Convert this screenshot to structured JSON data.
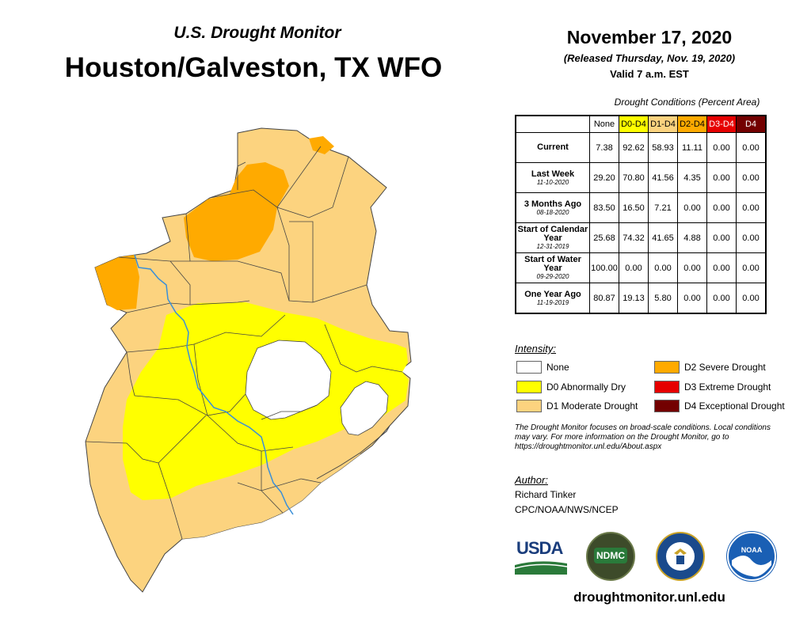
{
  "header": {
    "subtitle": "U.S. Drought Monitor",
    "region": "Houston/Galveston, TX WFO",
    "date": "November 17, 2020",
    "released": "(Released Thursday, Nov. 19, 2020)",
    "valid": "Valid 7 a.m. EST"
  },
  "table": {
    "caption": "Drought Conditions (Percent Area)",
    "columns": [
      "None",
      "D0-D4",
      "D1-D4",
      "D2-D4",
      "D3-D4",
      "D4"
    ],
    "column_colors": [
      "#ffffff",
      "#ffff00",
      "#fcd37f",
      "#ffaa00",
      "#e60000",
      "#730000"
    ],
    "rows": [
      {
        "label": "Current",
        "sub": "",
        "values": [
          "7.38",
          "92.62",
          "58.93",
          "11.11",
          "0.00",
          "0.00"
        ]
      },
      {
        "label": "Last Week",
        "sub": "11-10-2020",
        "values": [
          "29.20",
          "70.80",
          "41.56",
          "4.35",
          "0.00",
          "0.00"
        ]
      },
      {
        "label": "3 Months Ago",
        "sub": "08-18-2020",
        "values": [
          "83.50",
          "16.50",
          "7.21",
          "0.00",
          "0.00",
          "0.00"
        ]
      },
      {
        "label": "Start of Calendar Year",
        "sub": "12-31-2019",
        "values": [
          "25.68",
          "74.32",
          "41.65",
          "4.88",
          "0.00",
          "0.00"
        ]
      },
      {
        "label": "Start of Water Year",
        "sub": "09-29-2020",
        "values": [
          "100.00",
          "0.00",
          "0.00",
          "0.00",
          "0.00",
          "0.00"
        ]
      },
      {
        "label": "One Year Ago",
        "sub": "11-19-2019",
        "values": [
          "80.87",
          "19.13",
          "5.80",
          "0.00",
          "0.00",
          "0.00"
        ]
      }
    ]
  },
  "legend": {
    "title": "Intensity:",
    "items": [
      {
        "label": "None",
        "color": "#ffffff"
      },
      {
        "label": "D0 Abnormally Dry",
        "color": "#ffff00"
      },
      {
        "label": "D1 Moderate Drought",
        "color": "#fcd37f"
      },
      {
        "label": "D2 Severe Drought",
        "color": "#ffaa00"
      },
      {
        "label": "D3 Extreme Drought",
        "color": "#e60000"
      },
      {
        "label": "D4 Exceptional Drought",
        "color": "#730000"
      }
    ]
  },
  "note": "The Drought Monitor focuses on broad-scale conditions. Local conditions may vary. For more information on the Drought Monitor, go to https://droughtmonitor.unl.edu/About.aspx",
  "author": {
    "title": "Author:",
    "name": "Richard Tinker",
    "org": "CPC/NOAA/NWS/NCEP"
  },
  "logos": {
    "usda": "USDA",
    "ndmc": "NDMC",
    "noaa": "NOAA"
  },
  "footer": {
    "url": "droughtmonitor.unl.edu"
  },
  "colors": {
    "d0": "#ffff00",
    "d1": "#fcd37f",
    "d2": "#ffaa00",
    "river": "#3a8fd8",
    "border": "#444444"
  }
}
